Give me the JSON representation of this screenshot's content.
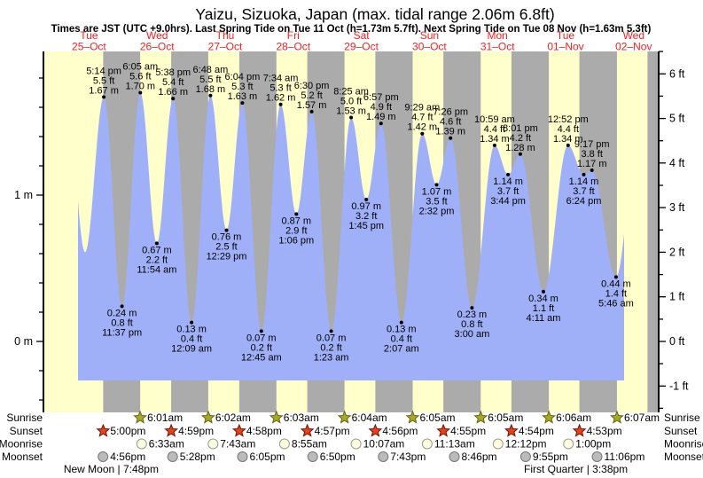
{
  "chart_data": {
    "type": "area",
    "title": "Yaizu, Sizuoka, Japan (max. tidal range 2.06m 6.8ft)",
    "subtitle": "Times are JST (UTC +9.0hrs). Last Spring Tide on Tue 11 Oct (h=1.73m 5.7ft). Next Spring Tide on Tue 08 Nov (h=1.63m 5.3ft)",
    "ylim_m": [
      -0.49,
      1.98
    ],
    "days": [
      {
        "name": "Tue",
        "date": "25–Oct"
      },
      {
        "name": "Wed",
        "date": "26–Oct"
      },
      {
        "name": "Thu",
        "date": "27–Oct"
      },
      {
        "name": "Fri",
        "date": "28–Oct"
      },
      {
        "name": "Sat",
        "date": "29–Oct"
      },
      {
        "name": "Sun",
        "date": "30–Oct"
      },
      {
        "name": "Mon",
        "date": "31–Oct"
      },
      {
        "name": "Tue",
        "date": "01–Nov"
      },
      {
        "name": "Wed",
        "date": "02–Nov"
      }
    ],
    "events": [
      {
        "day": 0,
        "type": "high",
        "time": "5:14 pm",
        "ft": "5.5 ft",
        "m": "1.67 m",
        "height_m": 1.67
      },
      {
        "day": 0,
        "type": "low",
        "time": "11:37 pm",
        "ft": "0.8 ft",
        "m": "0.24 m",
        "height_m": 0.24
      },
      {
        "day": 1,
        "type": "high",
        "time": "6:05 am",
        "ft": "5.6 ft",
        "m": "1.70 m",
        "height_m": 1.7
      },
      {
        "day": 1,
        "type": "low",
        "time": "11:54 am",
        "ft": "2.2 ft",
        "m": "0.67 m",
        "height_m": 0.67
      },
      {
        "day": 1,
        "type": "high",
        "time": "5:38 pm",
        "ft": "5.4 ft",
        "m": "1.66 m",
        "height_m": 1.66
      },
      {
        "day": 2,
        "type": "low",
        "time": "12:09 am",
        "ft": "0.4 ft",
        "m": "0.13 m",
        "height_m": 0.13
      },
      {
        "day": 2,
        "type": "high",
        "time": "6:48 am",
        "ft": "5.5 ft",
        "m": "1.68 m",
        "height_m": 1.68
      },
      {
        "day": 2,
        "type": "low",
        "time": "12:29 pm",
        "ft": "2.5 ft",
        "m": "0.76 m",
        "height_m": 0.76
      },
      {
        "day": 2,
        "type": "high",
        "time": "6:04 pm",
        "ft": "5.3 ft",
        "m": "1.63 m",
        "height_m": 1.63
      },
      {
        "day": 3,
        "type": "low",
        "time": "12:45 am",
        "ft": "0.2 ft",
        "m": "0.07 m",
        "height_m": 0.07
      },
      {
        "day": 3,
        "type": "high",
        "time": "7:34 am",
        "ft": "5.3 ft",
        "m": "1.62 m",
        "height_m": 1.62
      },
      {
        "day": 3,
        "type": "low",
        "time": "1:06 pm",
        "ft": "2.9 ft",
        "m": "0.87 m",
        "height_m": 0.87
      },
      {
        "day": 3,
        "type": "high",
        "time": "6:30 pm",
        "ft": "5.2 ft",
        "m": "1.57 m",
        "height_m": 1.57
      },
      {
        "day": 4,
        "type": "low",
        "time": "1:23 am",
        "ft": "0.2 ft",
        "m": "0.07 m",
        "height_m": 0.07
      },
      {
        "day": 4,
        "type": "high",
        "time": "8:25 am",
        "ft": "5.0 ft",
        "m": "1.53 m",
        "height_m": 1.53
      },
      {
        "day": 4,
        "type": "low",
        "time": "1:45 pm",
        "ft": "3.2 ft",
        "m": "0.97 m",
        "height_m": 0.97
      },
      {
        "day": 4,
        "type": "high",
        "time": "6:57 pm",
        "ft": "4.9 ft",
        "m": "1.49 m",
        "height_m": 1.49
      },
      {
        "day": 5,
        "type": "low",
        "time": "2:07 am",
        "ft": "0.4 ft",
        "m": "0.13 m",
        "height_m": 0.13
      },
      {
        "day": 5,
        "type": "high",
        "time": "9:29 am",
        "ft": "4.7 ft",
        "m": "1.42 m",
        "height_m": 1.42
      },
      {
        "day": 5,
        "type": "low",
        "time": "2:32 pm",
        "ft": "3.5 ft",
        "m": "1.07 m",
        "height_m": 1.07
      },
      {
        "day": 5,
        "type": "high",
        "time": "7:26 pm",
        "ft": "4.6 ft",
        "m": "1.39 m",
        "height_m": 1.39
      },
      {
        "day": 6,
        "type": "low",
        "time": "3:00 am",
        "ft": "0.8 ft",
        "m": "0.23 m",
        "height_m": 0.23
      },
      {
        "day": 6,
        "type": "high",
        "time": "10:59 am",
        "ft": "4.4 ft",
        "m": "1.34 m",
        "height_m": 1.34
      },
      {
        "day": 6,
        "type": "low",
        "time": "3:44 pm",
        "ft": "3.7 ft",
        "m": "1.14 m",
        "height_m": 1.14
      },
      {
        "day": 6,
        "type": "high",
        "time": "8:01 pm",
        "ft": "4.2 ft",
        "m": "1.28 m",
        "height_m": 1.28
      },
      {
        "day": 7,
        "type": "low",
        "time": "4:11 am",
        "ft": "1.1 ft",
        "m": "0.34 m",
        "height_m": 0.34
      },
      {
        "day": 7,
        "type": "high",
        "time": "12:52 pm",
        "ft": "4.4 ft",
        "m": "1.34 m",
        "height_m": 1.34
      },
      {
        "day": 7,
        "type": "low",
        "time": "6:24 pm",
        "ft": "3.7 ft",
        "m": "1.14 m",
        "height_m": 1.14
      },
      {
        "day": 7,
        "type": "high",
        "time": "9:17 pm",
        "ft": "3.8 ft",
        "m": "1.17 m",
        "height_m": 1.17
      },
      {
        "day": 8,
        "type": "low",
        "time": "5:46 am",
        "ft": "1.4 ft",
        "m": "0.44 m",
        "height_m": 0.44
      }
    ]
  },
  "axes": {
    "left": [
      "1 m",
      "0 m"
    ],
    "right": [
      "6 ft",
      "5 ft",
      "4 ft",
      "3 ft",
      "2 ft",
      "1 ft",
      "0 ft",
      "-1 ft"
    ]
  },
  "astro": {
    "rows": [
      {
        "id": "sunrise",
        "label": "Sunrise",
        "icon": "sunrise-star",
        "times": [
          {
            "day": 1,
            "time": "6:01am"
          },
          {
            "day": 2,
            "time": "6:02am"
          },
          {
            "day": 3,
            "time": "6:03am"
          },
          {
            "day": 4,
            "time": "6:04am"
          },
          {
            "day": 5,
            "time": "6:05am"
          },
          {
            "day": 6,
            "time": "6:05am"
          },
          {
            "day": 7,
            "time": "6:06am"
          },
          {
            "day": 8,
            "time": "6:07am"
          }
        ]
      },
      {
        "id": "sunset",
        "label": "Sunset",
        "icon": "sunset-star",
        "times": [
          {
            "day": 0,
            "time": "5:00pm"
          },
          {
            "day": 1,
            "time": "4:59pm"
          },
          {
            "day": 2,
            "time": "4:58pm"
          },
          {
            "day": 3,
            "time": "4:57pm"
          },
          {
            "day": 4,
            "time": "4:56pm"
          },
          {
            "day": 5,
            "time": "4:55pm"
          },
          {
            "day": 6,
            "time": "4:54pm"
          },
          {
            "day": 7,
            "time": "4:53pm"
          }
        ]
      },
      {
        "id": "moonrise",
        "label": "Moonrise",
        "icon": "moonrise-circle",
        "times": [
          {
            "day": 1,
            "time": "6:33am"
          },
          {
            "day": 2,
            "time": "7:43am"
          },
          {
            "day": 3,
            "time": "8:55am"
          },
          {
            "day": 4,
            "time": "10:07am"
          },
          {
            "day": 5,
            "time": "11:13am"
          },
          {
            "day": 6,
            "time": "12:12pm"
          },
          {
            "day": 7,
            "time": "1:00pm"
          }
        ]
      },
      {
        "id": "moonset",
        "label": "Moonset",
        "icon": "moonset-circle",
        "times": [
          {
            "day": 0,
            "time": "4:56pm"
          },
          {
            "day": 1,
            "time": "5:28pm"
          },
          {
            "day": 2,
            "time": "6:05pm"
          },
          {
            "day": 3,
            "time": "6:50pm"
          },
          {
            "day": 4,
            "time": "7:43pm"
          },
          {
            "day": 5,
            "time": "8:46pm"
          },
          {
            "day": 6,
            "time": "9:55pm"
          },
          {
            "day": 7,
            "time": "11:06pm"
          }
        ]
      }
    ],
    "phases": [
      {
        "day": 0,
        "time": "7:48pm",
        "text": "New Moon | 7:48pm"
      },
      {
        "day": 7,
        "time": "3:38pm",
        "text": "First Quarter | 3:38pm"
      }
    ]
  },
  "colors": {
    "day_band": "#ffffcc",
    "night_band": "#ababab",
    "tide_area": "#a0b0f8",
    "day_label": "#f22222",
    "dot": "#000000",
    "axis": "#000000",
    "sunrise_star": "#a8a828",
    "sunrise_star_edge": "#666611",
    "sunset_star": "#dd4422",
    "sunset_star_edge": "#771100",
    "moonrise_fill": "#ffffdd",
    "moonrise_edge": "#999999",
    "moonset_fill": "#bbbbbb",
    "moonset_edge": "#777777"
  }
}
